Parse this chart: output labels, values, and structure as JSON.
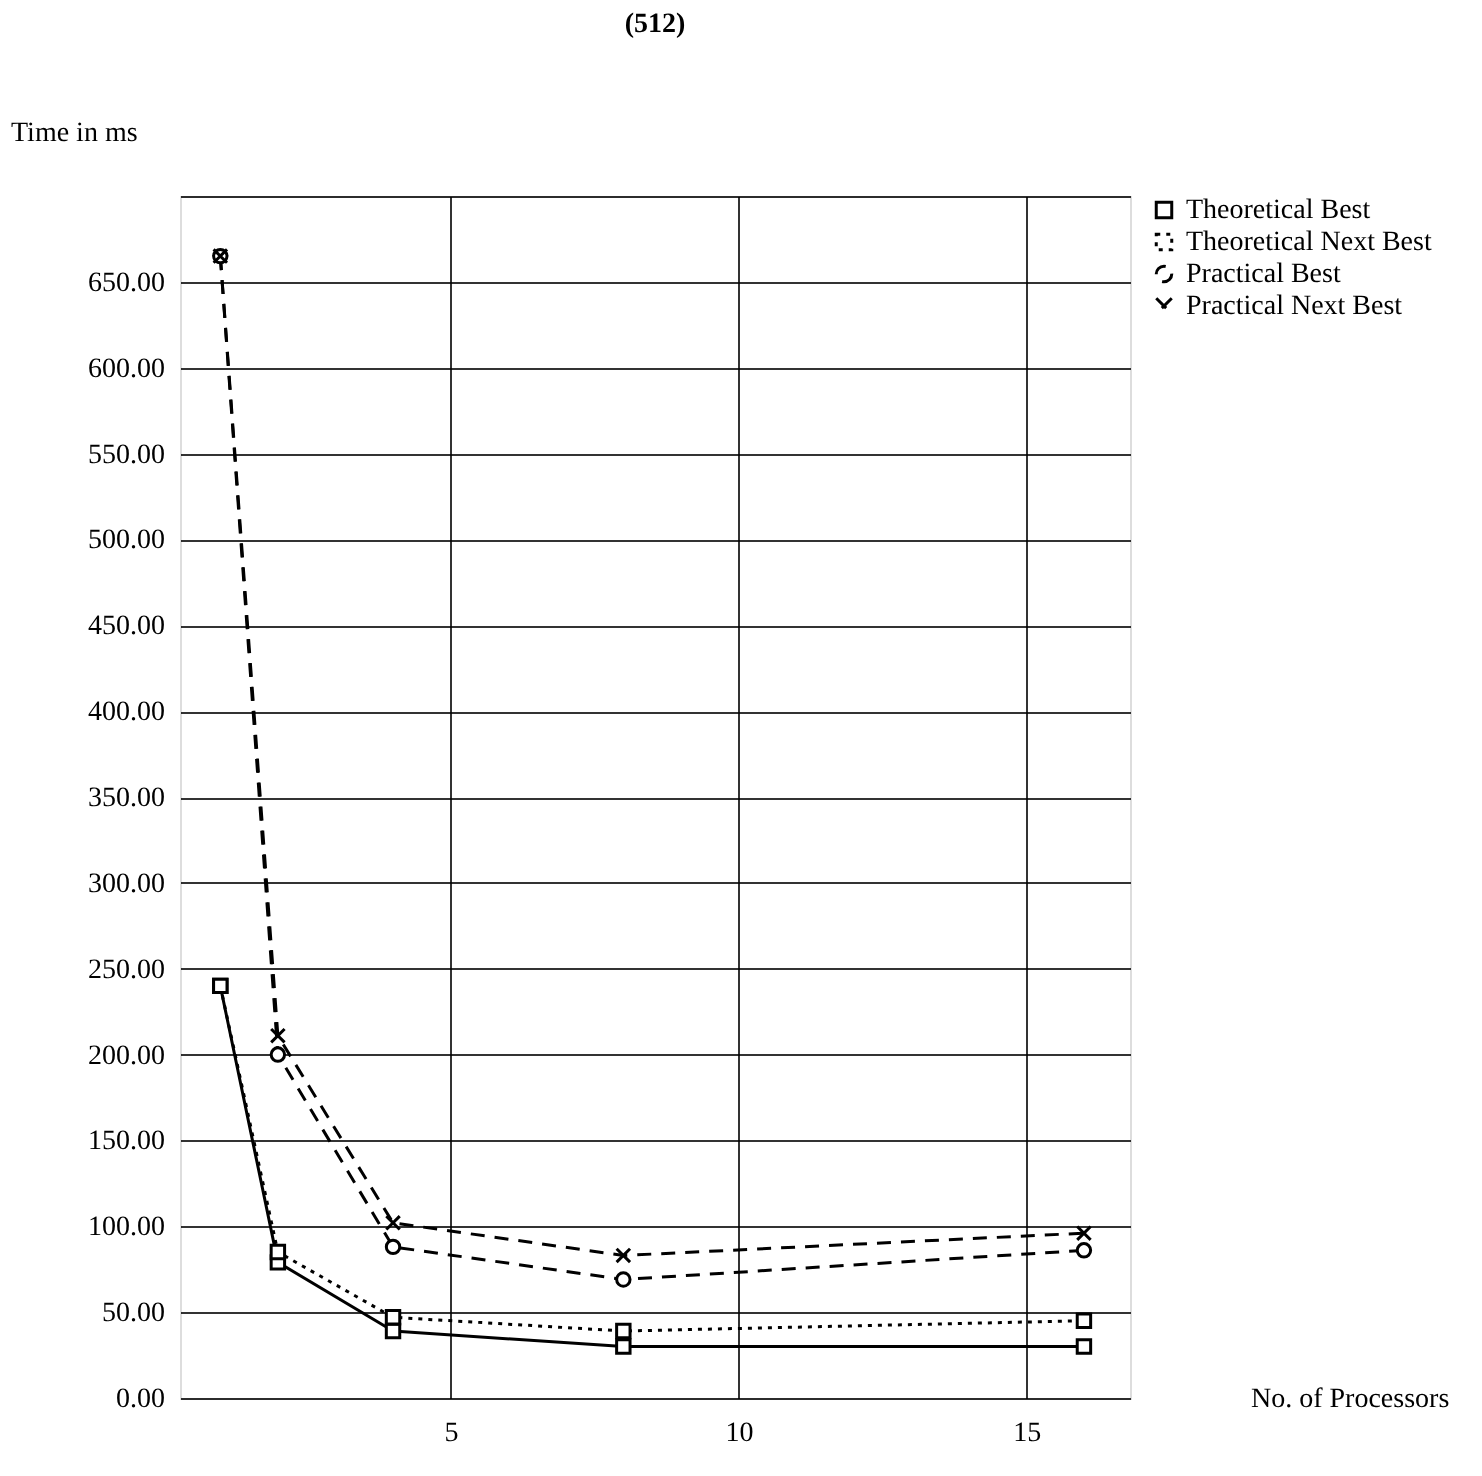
{
  "chart_data": {
    "type": "line",
    "title": "(512)",
    "xlabel": "No. of Processors",
    "ylabel": "Time in ms",
    "x": [
      1,
      2,
      4,
      8,
      16
    ],
    "xlim": [
      0.3,
      16.8
    ],
    "xticks": [
      5,
      10,
      15
    ],
    "ylim": [
      0,
      700
    ],
    "yticks": [
      {
        "value": 0,
        "label": "0.00"
      },
      {
        "value": 50,
        "label": "50.00"
      },
      {
        "value": 100,
        "label": "100.00"
      },
      {
        "value": 150,
        "label": "150.00"
      },
      {
        "value": 200,
        "label": "200.00"
      },
      {
        "value": 250,
        "label": "250.00"
      },
      {
        "value": 300,
        "label": "300.00"
      },
      {
        "value": 350,
        "label": "350.00"
      },
      {
        "value": 400,
        "label": "400.00"
      },
      {
        "value": 450,
        "label": "450.00"
      },
      {
        "value": 500,
        "label": "500.00"
      },
      {
        "value": 550,
        "label": "550.00"
      },
      {
        "value": 600,
        "label": "600.00"
      },
      {
        "value": 650,
        "label": "650.00"
      },
      {
        "value": 700,
        "label": null
      }
    ],
    "grid": true,
    "legend": "top right",
    "series": [
      {
        "name": "Theoretical Best",
        "color": "#000000",
        "marker": "square",
        "line_style": "solid",
        "values": [
          240,
          79,
          39,
          30,
          30
        ]
      },
      {
        "name": "Theoretical Next Best",
        "color": "#000000",
        "marker": "square",
        "line_style": "dotted",
        "values": [
          240,
          85,
          47,
          39,
          45
        ]
      },
      {
        "name": "Practical Best",
        "color": "#000000",
        "marker": "circle",
        "line_style": "dashed",
        "values": [
          665,
          200,
          88,
          69,
          86
        ]
      },
      {
        "name": "Practical Next Best",
        "color": "#000000",
        "marker": "cross",
        "line_style": "dashed",
        "values": [
          665,
          211,
          102,
          83,
          96
        ]
      }
    ]
  }
}
